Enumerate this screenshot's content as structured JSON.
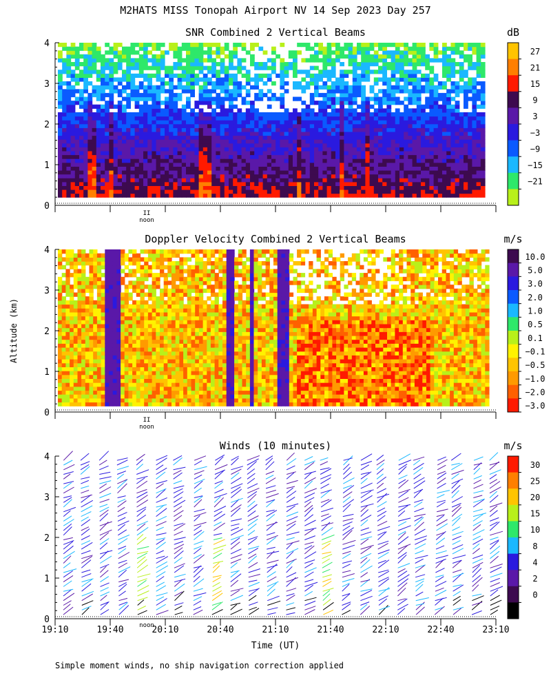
{
  "title": "M2HATS MISS Tonopah Airport NV  14 Sep 2023 Day 257",
  "ylabel": "Altitude (km)",
  "xlabel": "Time (UT)",
  "noon_label": "noon",
  "noon_marker": "II",
  "footer": "Simple moment winds, no ship navigation correction applied",
  "x_ticks": [
    "19:10",
    "19:40",
    "20:10",
    "20:40",
    "21:10",
    "21:40",
    "22:10",
    "22:40",
    "23:10"
  ],
  "y_ticks": [
    "0",
    "1",
    "2",
    "3",
    "4"
  ],
  "chart_data": [
    {
      "type": "heatmap",
      "title": "SNR Combined 2 Vertical Beams",
      "ylabel": "Altitude (km)",
      "ylim": [
        0,
        4
      ],
      "colorbar": {
        "unit": "dB",
        "labels": [
          "27",
          "21",
          "15",
          "9",
          "3",
          "−3",
          "−9",
          "−15",
          "−21"
        ],
        "colors": [
          "#ffc400",
          "#ff7f00",
          "#ff1a00",
          "#3d0a4f",
          "#5a18a8",
          "#2a1adf",
          "#0a5aff",
          "#1ab8ff",
          "#2ee86a",
          "#b8f01a"
        ]
      },
      "profile": {
        "altitude_km": [
          0.2,
          0.5,
          1.0,
          1.5,
          2.0,
          2.5,
          3.0,
          3.5,
          3.9
        ],
        "snr_db": [
          14,
          9,
          3,
          -3,
          -9,
          -12,
          -15,
          -18,
          -21
        ]
      }
    },
    {
      "type": "heatmap",
      "title": "Doppler Velocity Combined 2 Vertical Beams",
      "ylabel": "Altitude (km)",
      "ylim": [
        0,
        4
      ],
      "colorbar": {
        "unit": "m/s",
        "labels": [
          "10.0",
          "5.0",
          "3.0",
          "2.0",
          "1.0",
          "0.5",
          "0.1",
          "−0.1",
          "−0.5",
          "−1.0",
          "−2.0",
          "−3.0"
        ],
        "colors": [
          "#3d0a4f",
          "#5a18a8",
          "#2a1adf",
          "#0a5aff",
          "#1ab8ff",
          "#2ee86a",
          "#b8f01a",
          "#fff200",
          "#ffc400",
          "#ff9a00",
          "#ff6000",
          "#ff1a00"
        ]
      },
      "updraft_bands_utc": [
        "19:28",
        "19:30",
        "20:35",
        "20:38",
        "20:50"
      ]
    },
    {
      "type": "scatter",
      "title": "Winds (10 minutes)",
      "ylabel": "Altitude (km)",
      "ylim": [
        0,
        4
      ],
      "colorbar": {
        "unit": "m/s",
        "labels": [
          "30",
          "25",
          "20",
          "15",
          "10",
          "8",
          "4",
          "2",
          "0"
        ],
        "colors": [
          "#ff1a00",
          "#ff7f00",
          "#ffc400",
          "#b8f01a",
          "#2ee86a",
          "#1ab8ff",
          "#2a1adf",
          "#5a18a8",
          "#3d0a4f",
          "#000000"
        ]
      },
      "barb_times_utc": [
        "19:10",
        "19:20",
        "19:30",
        "19:40",
        "19:50",
        "20:00",
        "20:10",
        "20:20",
        "20:30",
        "20:40",
        "20:50",
        "21:00",
        "21:10",
        "21:20",
        "21:30",
        "21:40",
        "21:50",
        "22:00",
        "22:10",
        "22:20",
        "22:30",
        "22:40",
        "22:50",
        "23:00"
      ]
    }
  ]
}
